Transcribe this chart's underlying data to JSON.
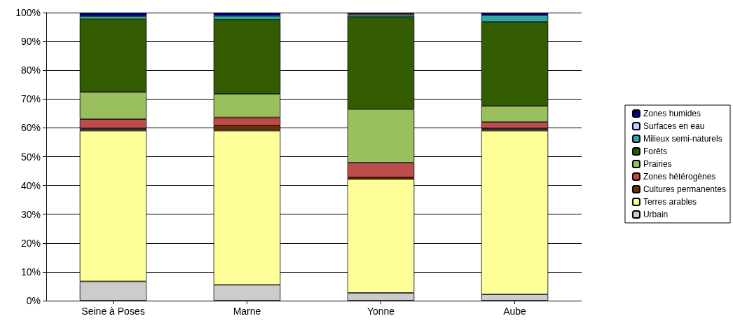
{
  "chart_data": {
    "type": "bar",
    "stacked": true,
    "categories": [
      "Seine à Poses",
      "Marne",
      "Yonne",
      "Aube"
    ],
    "series": [
      {
        "name": "Urbain",
        "color": "#cccccc",
        "values": [
          6.7,
          5.5,
          2.7,
          2.2
        ]
      },
      {
        "name": "Terres arables",
        "color": "#ffff99",
        "values": [
          52.3,
          53.5,
          39.5,
          56.8
        ]
      },
      {
        "name": "Cultures permanentes",
        "color": "#663300",
        "values": [
          0.8,
          1.8,
          0.6,
          0.8
        ]
      },
      {
        "name": "Zones hétérogènes",
        "color": "#bf4c4c",
        "values": [
          3.2,
          2.8,
          5.1,
          2.2
        ]
      },
      {
        "name": "Prairies",
        "color": "#99bf5f",
        "values": [
          9.4,
          8.2,
          18.6,
          5.6
        ]
      },
      {
        "name": "Forêts",
        "color": "#335c00",
        "values": [
          25.3,
          25.8,
          31.9,
          29.2
        ]
      },
      {
        "name": "Milieux semi-naturels",
        "color": "#33a6a6",
        "values": [
          1.1,
          1.3,
          0.5,
          2.3
        ]
      },
      {
        "name": "Surfaces en eau",
        "color": "#ccccff",
        "values": [
          null,
          null,
          0.6,
          null
        ]
      },
      {
        "name": "Zones humides",
        "color": "#000080",
        "values": [
          1.2,
          1.1,
          0.5,
          0.9
        ]
      }
    ],
    "ylim": [
      0,
      100
    ],
    "yticks": [
      {
        "value": 0,
        "label": "0%"
      },
      {
        "value": 10,
        "label": "10%"
      },
      {
        "value": 20,
        "label": "20%"
      },
      {
        "value": 30,
        "label": "30%"
      },
      {
        "value": 40,
        "label": "40%"
      },
      {
        "value": 50,
        "label": "50%"
      },
      {
        "value": 60,
        "label": "60%"
      },
      {
        "value": 70,
        "label": "70%"
      },
      {
        "value": 80,
        "label": "80%"
      },
      {
        "value": 90,
        "label": "90%"
      },
      {
        "value": 100,
        "label": "100%"
      }
    ],
    "grid": "y",
    "legend": "right"
  }
}
